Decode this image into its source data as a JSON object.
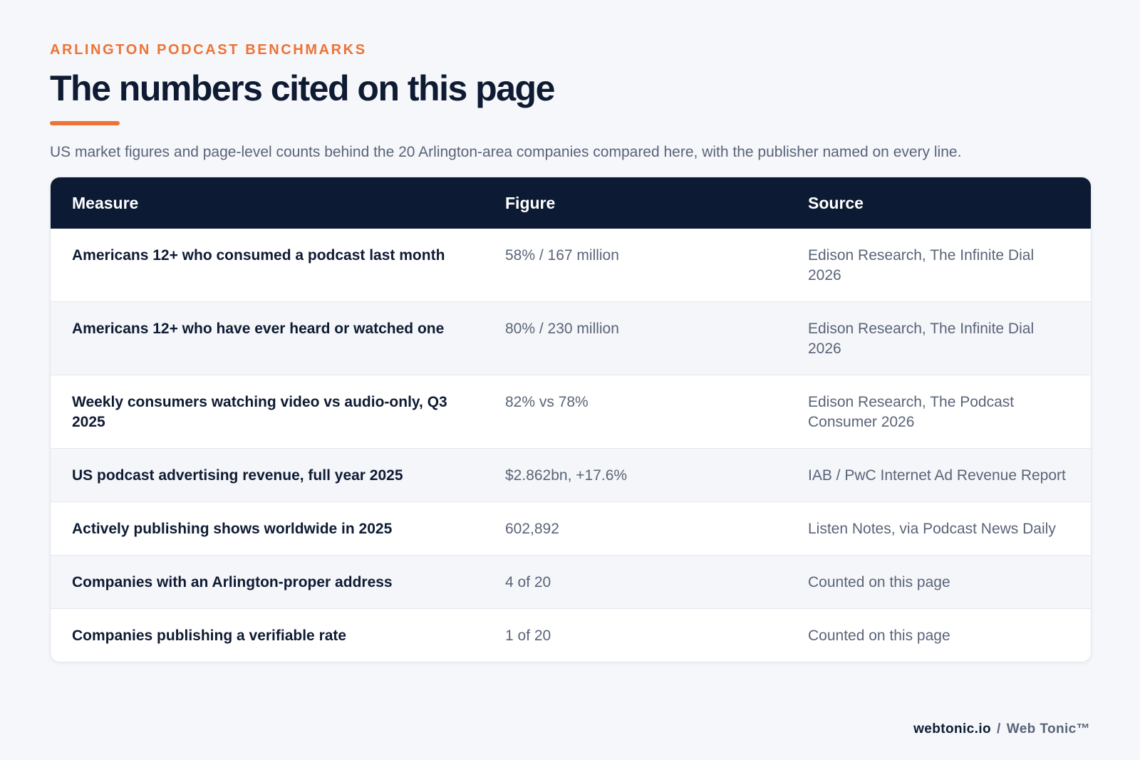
{
  "header": {
    "eyebrow": "ARLINGTON PODCAST BENCHMARKS",
    "title": "The numbers cited on this page",
    "subtitle": "US market figures and page-level counts behind the 20 Arlington-area companies compared here, with the publisher named on every line."
  },
  "table": {
    "columns": [
      "Measure",
      "Figure",
      "Source"
    ],
    "rows": [
      {
        "measure": "Americans 12+ who consumed a podcast last month",
        "figure": "58% / 167 million",
        "source": "Edison Research, The Infinite Dial 2026"
      },
      {
        "measure": "Americans 12+ who have ever heard or watched one",
        "figure": "80% / 230 million",
        "source": "Edison Research, The Infinite Dial 2026"
      },
      {
        "measure": "Weekly consumers watching video vs audio-only, Q3 2025",
        "figure": "82% vs 78%",
        "source": "Edison Research, The Podcast Consumer 2026"
      },
      {
        "measure": "US podcast advertising revenue, full year 2025",
        "figure": "$2.862bn, +17.6%",
        "source": "IAB / PwC Internet Ad Revenue Report"
      },
      {
        "measure": "Actively publishing shows worldwide in 2025",
        "figure": "602,892",
        "source": "Listen Notes, via Podcast News Daily"
      },
      {
        "measure": "Companies with an Arlington-proper address",
        "figure": "4 of 20",
        "source": "Counted on this page"
      },
      {
        "measure": "Companies publishing a verifiable rate",
        "figure": "1 of 20",
        "source": "Counted on this page"
      }
    ]
  },
  "footer": {
    "domain": "webtonic.io",
    "separator": "/",
    "brand": "Web Tonic™"
  },
  "colors": {
    "accent": "#ee7336",
    "header_bg": "#0c1a33",
    "text_primary": "#0f1b33",
    "text_muted": "#5a6478",
    "page_bg": "#f5f7fa"
  }
}
